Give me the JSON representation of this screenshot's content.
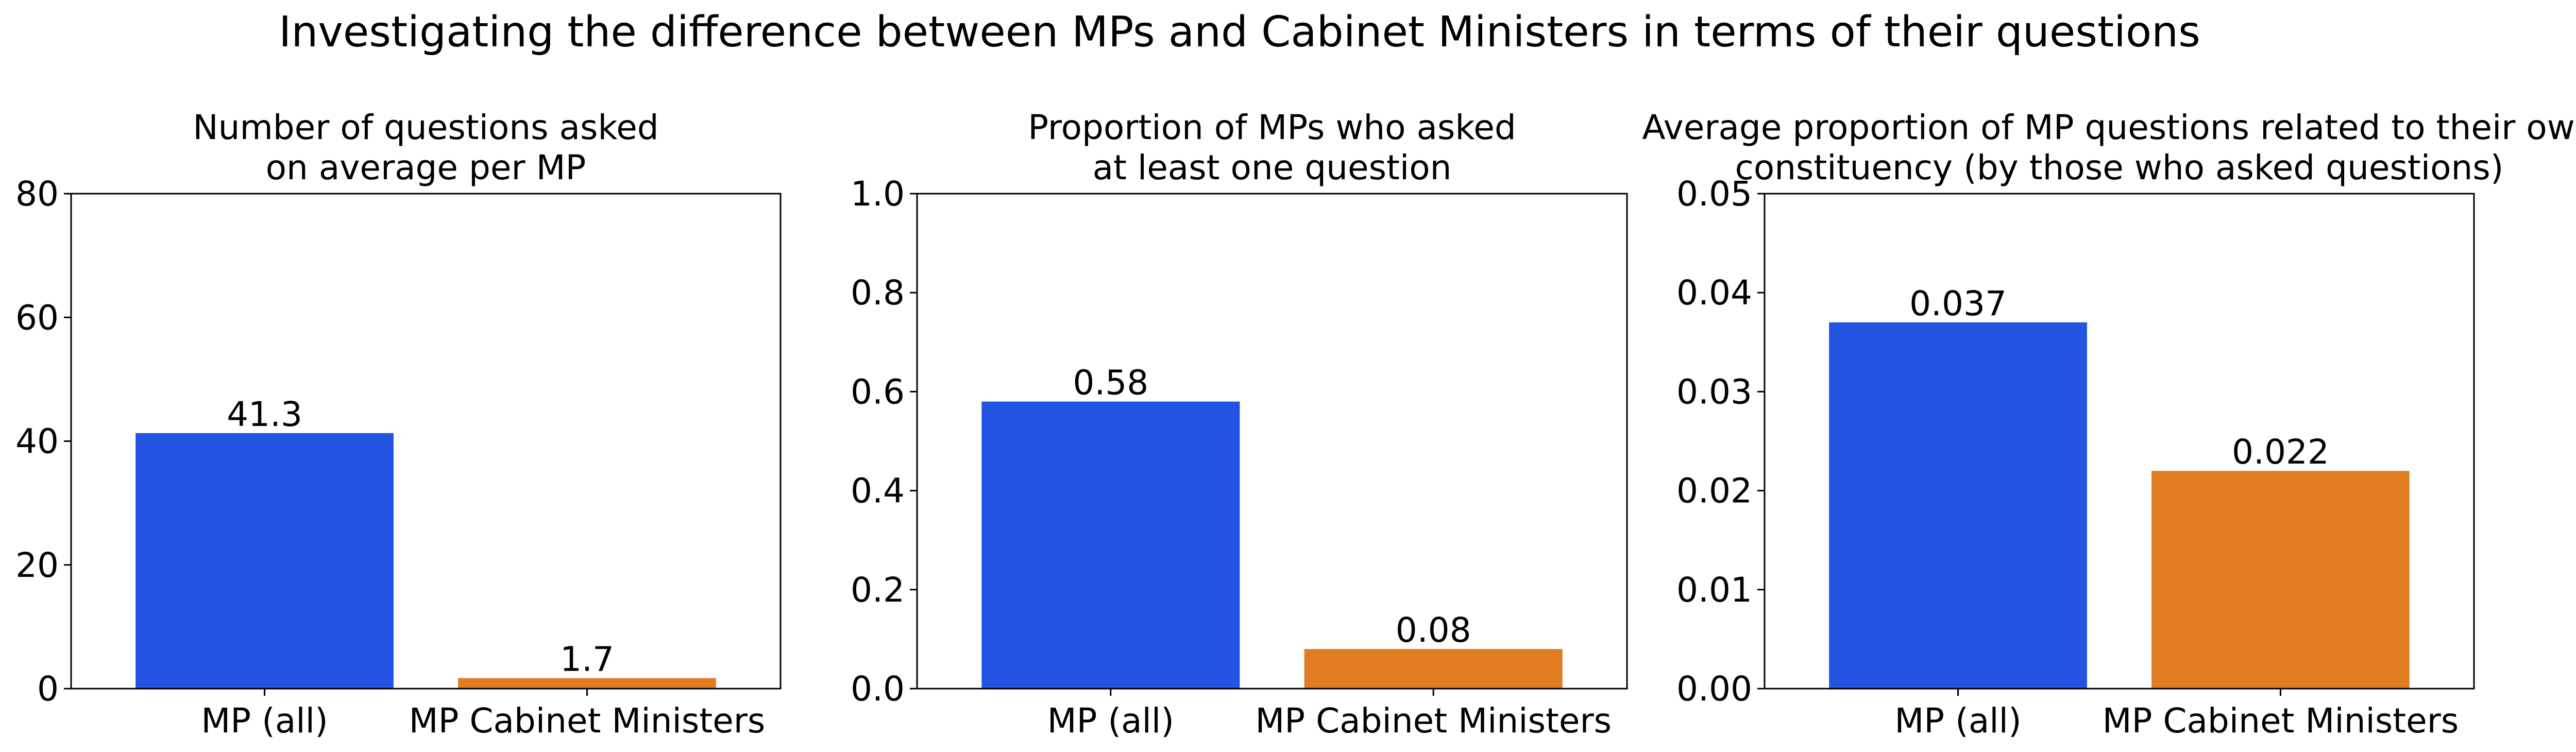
{
  "figure": {
    "suptitle": "Investigating the difference between MPs and Cabinet Ministers in terms of their questions"
  },
  "chart_data": [
    {
      "type": "bar",
      "title": "Number of questions asked\non average per MP",
      "categories": [
        "MP (all)",
        "MP Cabinet Ministers"
      ],
      "values": [
        41.3,
        1.7
      ],
      "value_labels": [
        "41.3",
        "1.7"
      ],
      "colors": [
        "#2353e1",
        "#e07d22"
      ],
      "ylim": [
        0,
        80
      ],
      "yticks": [
        0,
        20,
        40,
        60,
        80
      ],
      "ytick_labels": [
        "0",
        "20",
        "40",
        "60",
        "80"
      ],
      "xlabel": "",
      "ylabel": "",
      "grid": false
    },
    {
      "type": "bar",
      "title": "Proportion of MPs who asked\nat least one question",
      "categories": [
        "MP (all)",
        "MP Cabinet Ministers"
      ],
      "values": [
        0.58,
        0.08
      ],
      "value_labels": [
        "0.58",
        "0.08"
      ],
      "colors": [
        "#2353e1",
        "#e07d22"
      ],
      "ylim": [
        0,
        1.0
      ],
      "yticks": [
        0,
        0.2,
        0.4,
        0.6,
        0.8,
        1.0
      ],
      "ytick_labels": [
        "0.0",
        "0.2",
        "0.4",
        "0.6",
        "0.8",
        "1.0"
      ],
      "xlabel": "",
      "ylabel": "",
      "grid": false
    },
    {
      "type": "bar",
      "title": "Average proportion of MP questions related to their own\nconstituency (by those who asked questions)",
      "categories": [
        "MP (all)",
        "MP Cabinet Ministers"
      ],
      "values": [
        0.037,
        0.022
      ],
      "value_labels": [
        "0.037",
        "0.022"
      ],
      "colors": [
        "#2353e1",
        "#e07d22"
      ],
      "ylim": [
        0,
        0.05
      ],
      "yticks": [
        0,
        0.01,
        0.02,
        0.03,
        0.04,
        0.05
      ],
      "ytick_labels": [
        "0.00",
        "0.01",
        "0.02",
        "0.03",
        "0.04",
        "0.05"
      ],
      "xlabel": "",
      "ylabel": "",
      "grid": false
    }
  ]
}
